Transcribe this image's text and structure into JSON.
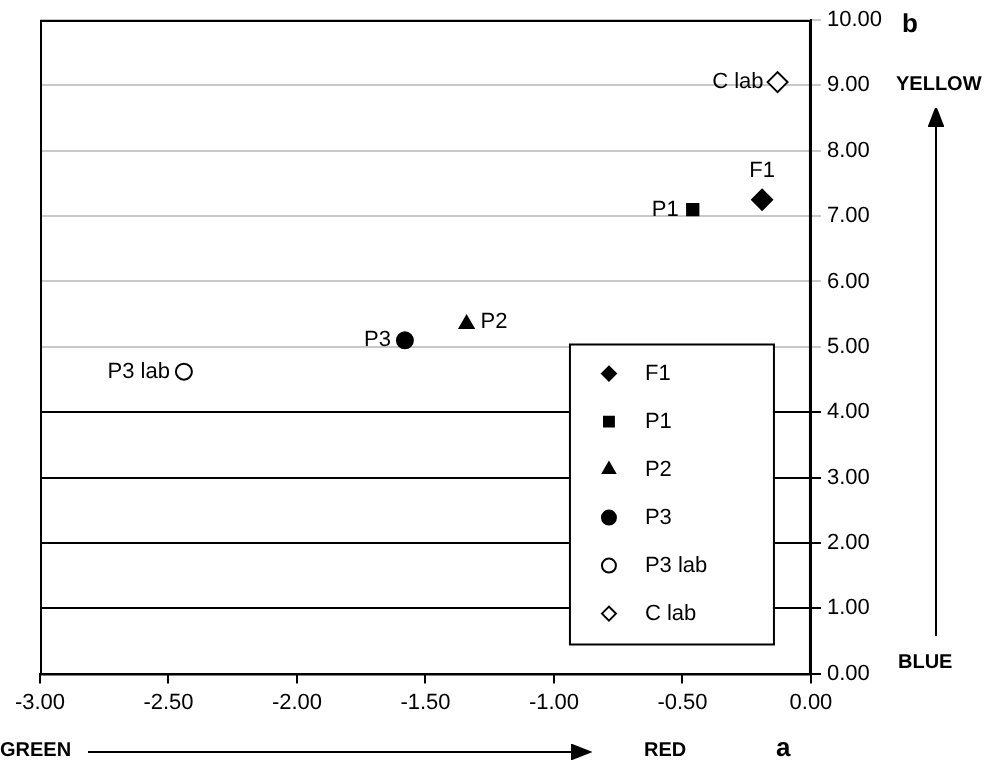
{
  "chart_data": {
    "type": "scatter",
    "annotations": [
      "a",
      "b",
      "GREEN",
      "RED",
      "YELLOW",
      "BLUE"
    ],
    "series": [
      {
        "name": "F1",
        "color": "#000000",
        "marker": "diamond",
        "x": [
          -0.19
        ],
        "values": [
          7.25
        ]
      },
      {
        "name": "P1",
        "color": "#000000",
        "marker": "square",
        "x": [
          -0.46
        ],
        "values": [
          7.1
        ]
      },
      {
        "name": "P2",
        "color": "#000000",
        "marker": "triangle",
        "x": [
          -1.34
        ],
        "values": [
          5.35
        ]
      },
      {
        "name": "P3",
        "color": "#000000",
        "marker": "circle",
        "x": [
          -1.58
        ],
        "values": [
          5.1
        ]
      },
      {
        "name": "P3 lab",
        "color": "#ffffff",
        "marker": "circle",
        "x": [
          -2.44
        ],
        "values": [
          4.62
        ]
      },
      {
        "name": "C lab",
        "color": "#ffffff",
        "marker": "diamond",
        "x": [
          -0.13
        ],
        "values": [
          9.05
        ]
      }
    ],
    "xlim": [
      -3,
      0
    ],
    "xticks": [
      {
        "value": -3,
        "label": "-3.00"
      },
      {
        "value": -2.5,
        "label": "-2.50"
      },
      {
        "value": -2,
        "label": "-2.00"
      },
      {
        "value": -1.5,
        "label": "-1.50"
      },
      {
        "value": -1,
        "label": "-1.00"
      },
      {
        "value": -0.5,
        "label": "-0.50"
      },
      {
        "value": 0,
        "label": "0.00"
      }
    ],
    "ylim": [
      0,
      10
    ],
    "yticks": [
      {
        "value": 0,
        "label": "0.00"
      },
      {
        "value": 1,
        "label": "1.00"
      },
      {
        "value": 2,
        "label": "2.00"
      },
      {
        "value": 3,
        "label": "3.00"
      },
      {
        "value": 4,
        "label": "4.00"
      },
      {
        "value": 5,
        "label": "5.00"
      },
      {
        "value": 6,
        "label": "6.00"
      },
      {
        "value": 7,
        "label": "7.00"
      },
      {
        "value": 8,
        "label": "8.00"
      },
      {
        "value": 9,
        "label": "9.00"
      },
      {
        "value": 10,
        "label": "10.00"
      }
    ],
    "grid": "y",
    "legend": "bottom right"
  }
}
